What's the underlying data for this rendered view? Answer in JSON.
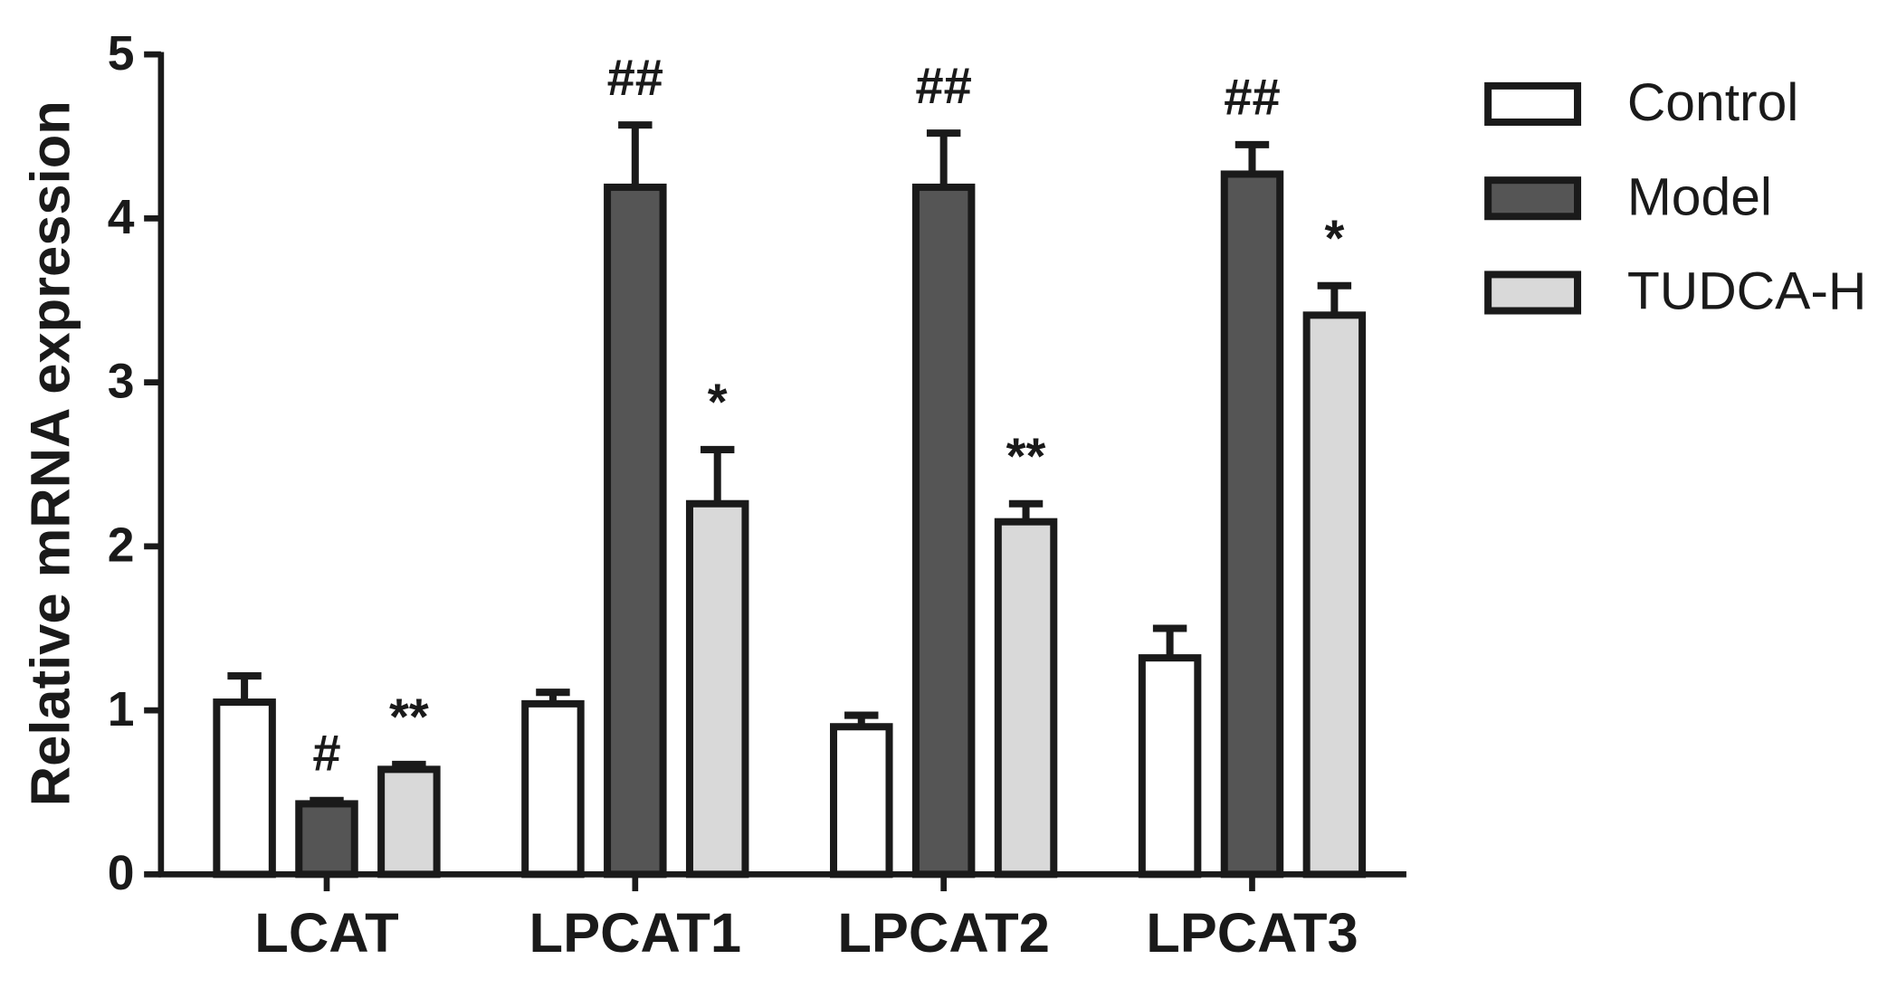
{
  "chart_data": {
    "type": "bar",
    "y_label": "Relative mRNA expression",
    "categories": [
      "LCAT",
      "LPCAT1",
      "LPCAT2",
      "LPCAT3"
    ],
    "series": [
      {
        "name": "Control",
        "color": "#ffffff",
        "values": [
          1.05,
          1.04,
          0.9,
          1.32
        ],
        "errors": [
          0.16,
          0.07,
          0.07,
          0.18
        ],
        "markers": [
          null,
          null,
          null,
          null
        ]
      },
      {
        "name": "Model",
        "color": "#555555",
        "values": [
          0.43,
          4.19,
          4.19,
          4.27
        ],
        "errors": [
          0.02,
          0.38,
          0.33,
          0.18
        ],
        "markers": [
          "#",
          "##",
          "##",
          "##"
        ]
      },
      {
        "name": "TUDCA-H",
        "color": "#d9d9d9",
        "values": [
          0.64,
          2.26,
          2.15,
          3.41
        ],
        "errors": [
          0.03,
          0.33,
          0.11,
          0.18
        ],
        "markers": [
          "**",
          "*",
          "**",
          "*"
        ]
      }
    ],
    "ylim": [
      0,
      5
    ],
    "yticks": [
      0,
      1,
      2,
      3,
      4,
      5
    ],
    "grid": false,
    "legend": "right"
  }
}
